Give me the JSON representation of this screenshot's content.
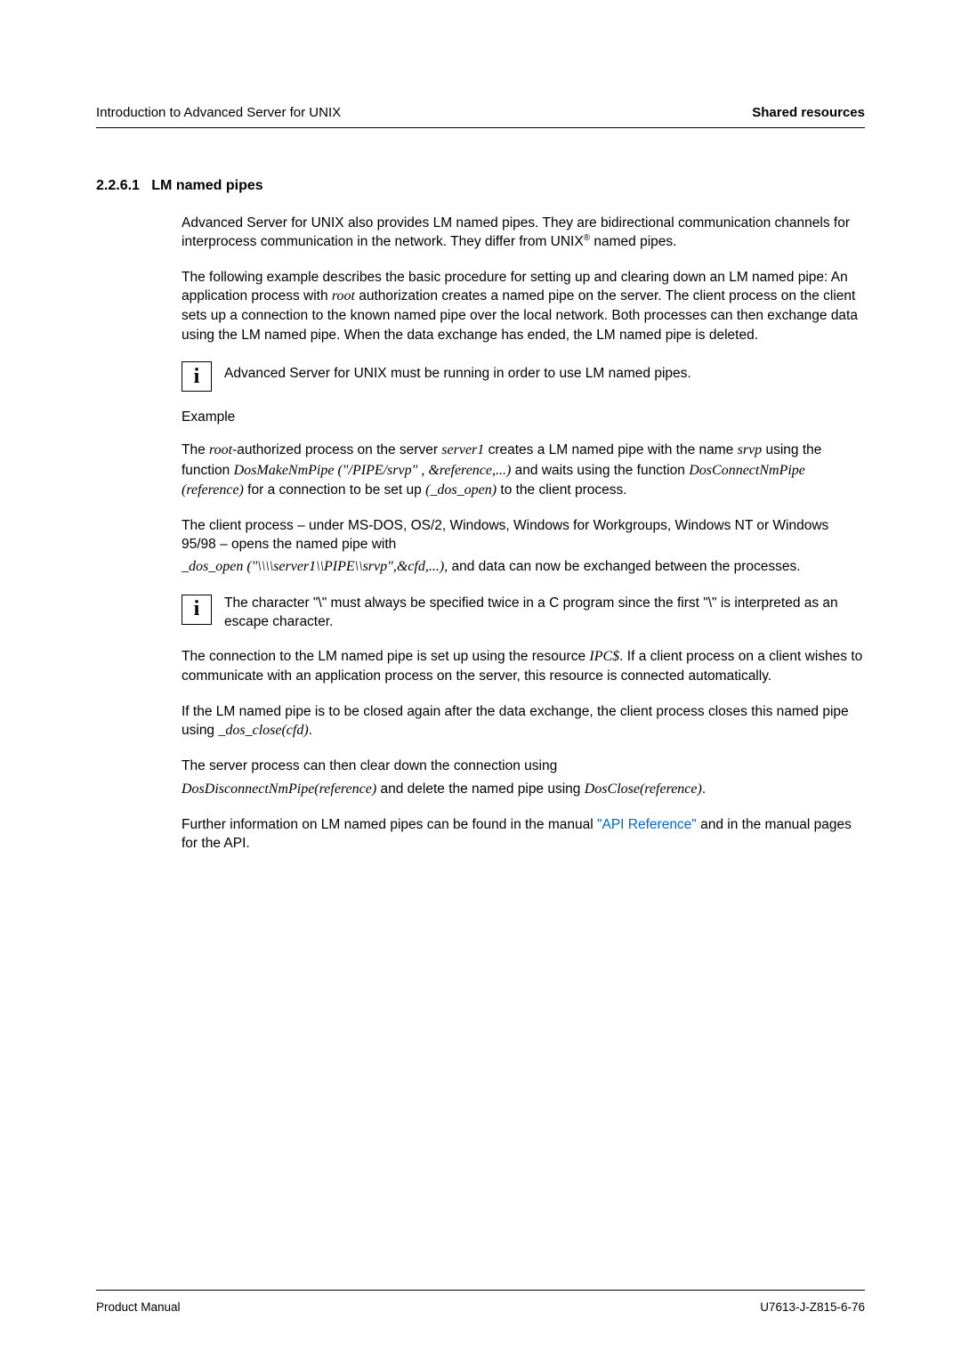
{
  "header": {
    "left": "Introduction to Advanced Server for UNIX",
    "right": "Shared resources"
  },
  "section": {
    "number": "2.2.6.1",
    "title": "LM named pipes"
  },
  "paragraphs": {
    "p1a": "Advanced Server for UNIX also provides LM named pipes. They are bidirectional communication channels for interprocess communication in the network. They differ from UNIX",
    "p1b": " named pipes.",
    "p2a": "The following example describes the basic procedure for setting up and clearing down an LM named pipe: An application process with ",
    "p2_root": "root",
    "p2b": " authorization creates a named pipe on the server. The client process on the client sets up a connection to the known named pipe over the local network. Both processes can then exchange data using the LM named pipe. When the data exchange has ended, the LM named pipe is deleted.",
    "info1": "Advanced Server for UNIX must be running in order to use LM named pipes.",
    "example_label": "Example",
    "p3a": "The ",
    "p3_root": "root",
    "p3b": "-authorized process on the server ",
    "p3_server1": "server1",
    "p3c": " creates a LM named pipe with the name ",
    "p3_srvp": "srvp",
    "p3d": " using the function ",
    "p3_fn1": "DosMakeNmPipe (\"/PIPE/srvp\" , &reference,...)",
    "p3e": " and waits using the function ",
    "p3_fn2": "DosConnectNmPipe (reference)",
    "p3f": " for a connection to be set up ",
    "p3_fn3": "(_dos_open)",
    "p3g": " to the client process.",
    "p4a": "The client process – under MS-DOS, OS/2, Windows, Windows for Workgroups, Windows NT or Windows 95/98 – opens the named pipe with",
    "p4_fn": "_dos_open (\"\\\\\\\\server1\\\\PIPE\\\\srvp\",&cfd,...),",
    "p4b": " and data can now be exchanged between the processes.",
    "info2": "The character \"\\\" must always be specified twice in a C program since the first \"\\\" is interpreted as an escape character.",
    "p5a": "The connection to the LM named pipe is set up using the resource ",
    "p5_ipc": "IPC$",
    "p5b": ". If a client process on a client wishes to communicate with an application process on the server, this resource is connected automatically.",
    "p6a": "If the LM named pipe is to be closed again after the data exchange, the client process closes this named pipe using ",
    "p6_fn": "_dos_close(cfd)",
    "p6b": ".",
    "p7a": "The server process can then clear down the connection using",
    "p7_fn1": "DosDisconnectNmPipe(reference)",
    "p7b": " and delete the named pipe using ",
    "p7_fn2": "DosClose(reference)",
    "p7c": ".",
    "p8a": "Further information on LM named pipes can be found in the manual ",
    "p8_link": "\"API Reference\"",
    "p8b": " and in the manual pages for the API."
  },
  "footer": {
    "left": "Product Manual",
    "right": "U7613-J-Z815-6-76"
  },
  "glyphs": {
    "reg": "®",
    "info_i": "i"
  }
}
